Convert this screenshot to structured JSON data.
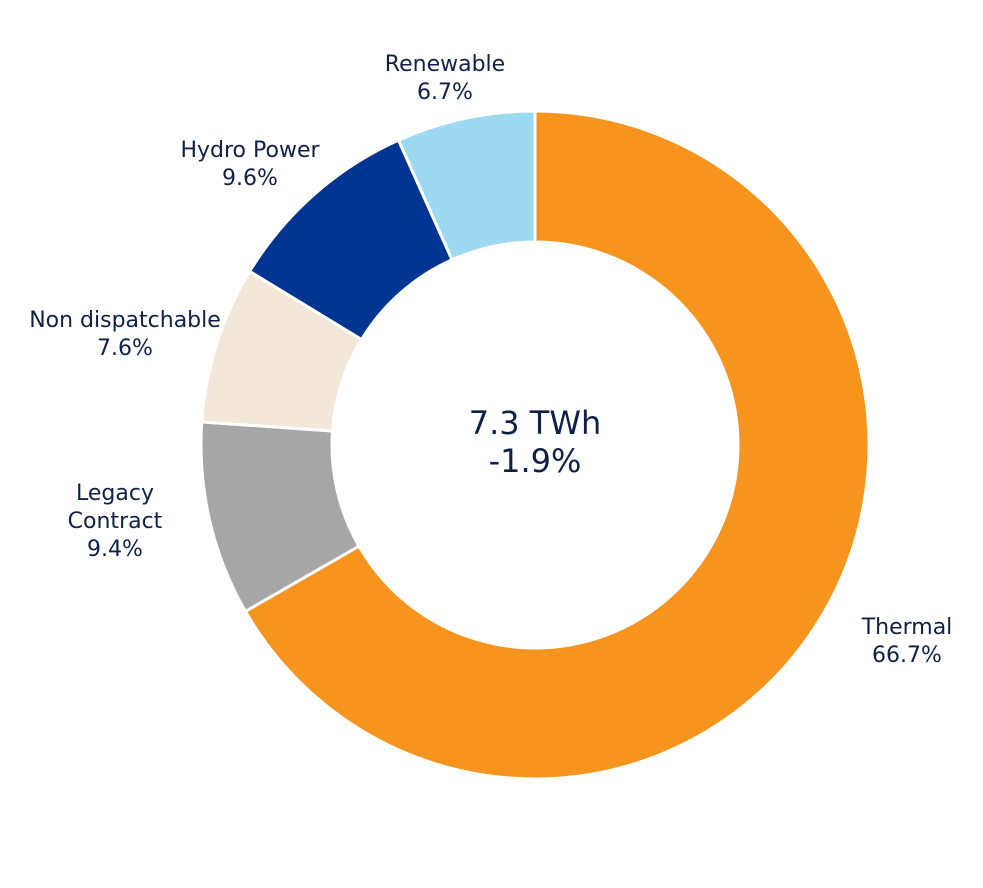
{
  "chart_data": {
    "type": "pie",
    "subtype": "donut",
    "center": {
      "total": "7.3 TWh",
      "change": "-1.9%"
    },
    "slices": [
      {
        "label": [
          "Thermal"
        ],
        "value": 66.7,
        "display": "66.7%",
        "color": "#f7941e"
      },
      {
        "label": [
          "Legacy",
          "Contract"
        ],
        "value": 9.4,
        "display": "9.4%",
        "color": "#a6a6a6"
      },
      {
        "label": [
          "Non dispatchable"
        ],
        "value": 7.6,
        "display": "7.6%",
        "color": "#f2e7d8"
      },
      {
        "label": [
          "Hydro Power"
        ],
        "value": 9.6,
        "display": "9.6%",
        "color": "#003591"
      },
      {
        "label": [
          "Renewable"
        ],
        "value": 6.7,
        "display": "6.7%",
        "color": "#9dd9f0"
      }
    ],
    "direction": "clockwise from top",
    "legend": "none",
    "text_color": "#0f2147"
  }
}
